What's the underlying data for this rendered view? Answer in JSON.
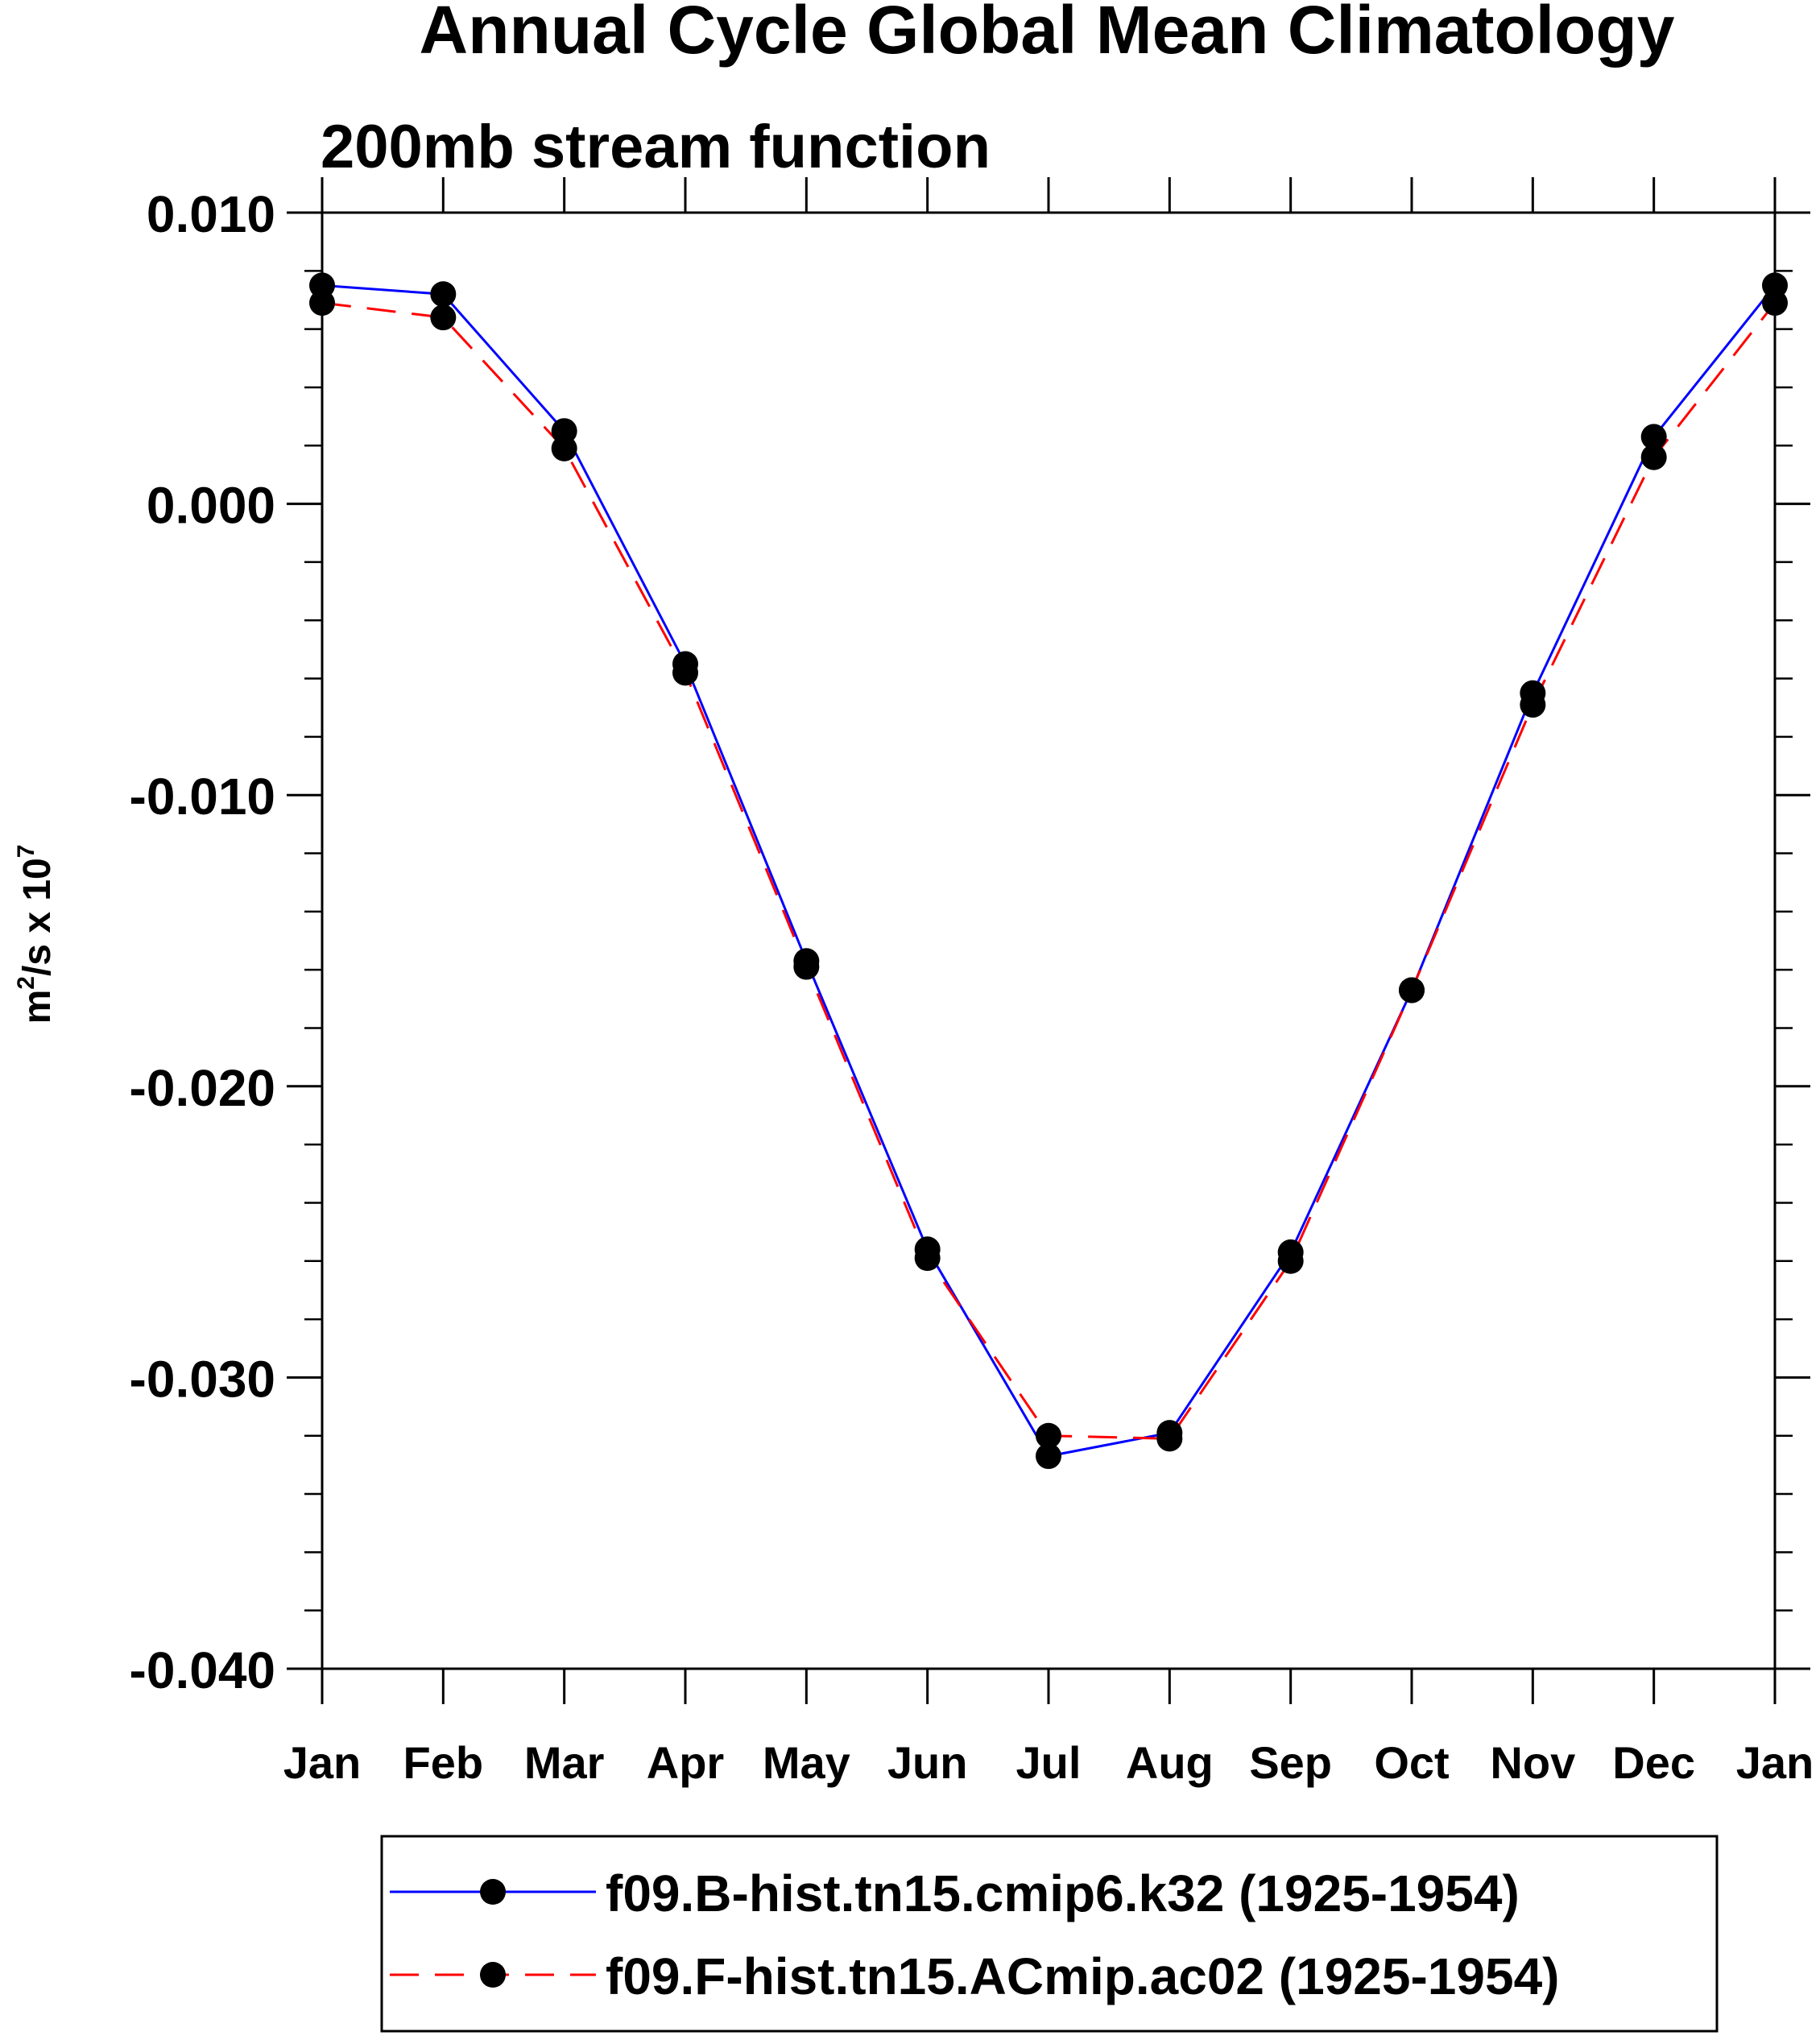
{
  "chart_data": {
    "type": "line",
    "title": "Annual Cycle Global Mean Climatology",
    "subtitle": "200mb stream function",
    "ylabel_base": "m",
    "ylabel_sup1": "2",
    "ylabel_mid": "/s x 10",
    "ylabel_sup2": "7",
    "xlabel": "",
    "categories": [
      "Jan",
      "Feb",
      "Mar",
      "Apr",
      "May",
      "Jun",
      "Jul",
      "Aug",
      "Sep",
      "Oct",
      "Nov",
      "Dec",
      "Jan"
    ],
    "ylim": [
      -0.04,
      0.01
    ],
    "yticks": [
      0.01,
      0.0,
      -0.01,
      -0.02,
      -0.03,
      -0.04
    ],
    "ytick_labels": [
      "0.010",
      "0.000",
      "-0.010",
      "-0.020",
      "-0.030",
      "-0.040"
    ],
    "y_minor_step": 0.002,
    "grid": false,
    "legend_position": "bottom",
    "series": [
      {
        "name": "f09.B-hist.tn15.cmip6.k32 (1925-1954)",
        "color": "#0000ff",
        "dash": "solid",
        "marker": "circle",
        "values": [
          0.0075,
          0.0072,
          0.0025,
          -0.0055,
          -0.0157,
          -0.0256,
          -0.0327,
          -0.0319,
          -0.0257,
          -0.0167,
          -0.0065,
          0.0023,
          0.0075
        ]
      },
      {
        "name": "f09.F-hist.tn15.ACmip.ac02 (1925-1954)",
        "color": "#ff0000",
        "dash": "dashed",
        "marker": "circle",
        "values": [
          0.0069,
          0.0064,
          0.0019,
          -0.0058,
          -0.0159,
          -0.0259,
          -0.032,
          -0.0321,
          -0.026,
          -0.0167,
          -0.0069,
          0.0016,
          0.0069
        ]
      }
    ]
  }
}
